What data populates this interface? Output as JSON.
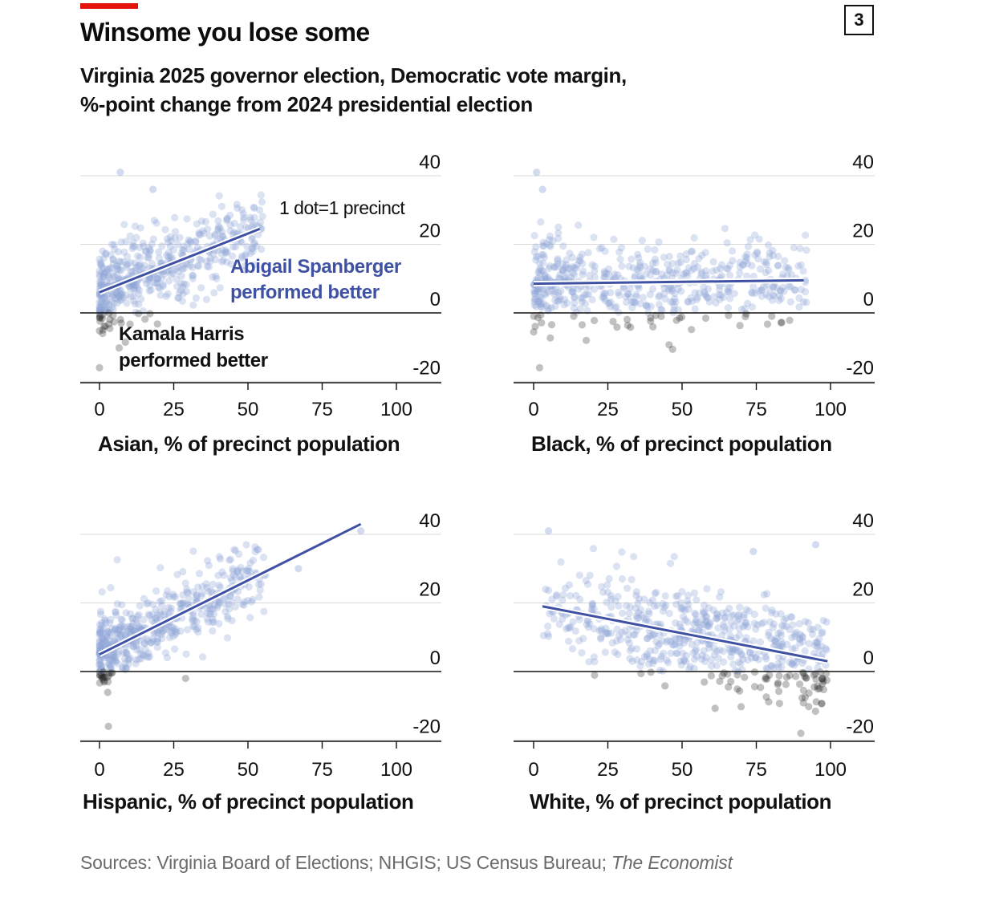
{
  "header": {
    "title": "Winsome you lose some",
    "subtitle_line1": "Virginia 2025 governor election, Democratic vote margin,",
    "subtitle_line2": "%-point change from 2024 presidential election",
    "badge": "3"
  },
  "footer": {
    "source_prefix": "Sources: Virginia Board of Elections; NHGIS; US Census Bureau; ",
    "source_italic": "The Economist"
  },
  "colors": {
    "blue_line": "#3f51a3",
    "blue_dots": "#8fa6d6",
    "dark_dots": "#222222",
    "grid": "#d9d9d9",
    "zero_line": "#111111",
    "red_accent": "#e3120b"
  },
  "annotations": {
    "dot_key": "1 dot=1 precinct",
    "spanberger_line1": "Abigail Spanberger",
    "spanberger_line2": "performed better",
    "harris_line1": "Kamala Harris",
    "harris_line2": "performed better"
  },
  "chart_data": [
    {
      "type": "scatter",
      "xlabel": "Asian, % of precinct population",
      "x_ticks": [
        "0",
        "25",
        "50",
        "75",
        "100"
      ],
      "y_ticks": [
        "40",
        "20",
        "0",
        "-20"
      ],
      "xlim": [
        0,
        100
      ],
      "ylim": [
        -20,
        40
      ],
      "grid": true,
      "y_axis_side": "right",
      "trend": {
        "x": [
          0,
          54
        ],
        "y": [
          6,
          24.5
        ]
      },
      "dots": {
        "x_max": 55,
        "x_skew": 1.6,
        "intercept": 6,
        "slope": 0.34,
        "spread": 6,
        "n": 520,
        "outliers": [
          [
            7,
            41
          ],
          [
            18,
            36
          ],
          [
            0,
            -16
          ]
        ]
      }
    },
    {
      "type": "scatter",
      "xlabel": "Black, % of precinct population",
      "x_ticks": [
        "0",
        "25",
        "50",
        "75",
        "100"
      ],
      "y_ticks": [
        "40",
        "20",
        "0",
        "-20"
      ],
      "xlim": [
        0,
        100
      ],
      "ylim": [
        -20,
        40
      ],
      "grid": true,
      "y_axis_side": "right",
      "trend": {
        "x": [
          0,
          91
        ],
        "y": [
          8.5,
          9.5
        ]
      },
      "dots": {
        "x_max": 92,
        "x_skew": 1.4,
        "intercept": 8.5,
        "slope": 0.01,
        "spread": 6.5,
        "n": 560,
        "outliers": [
          [
            1,
            41
          ],
          [
            3,
            36
          ],
          [
            2,
            -16
          ]
        ]
      }
    },
    {
      "type": "scatter",
      "xlabel": "Hispanic, % of precinct population",
      "x_ticks": [
        "0",
        "25",
        "50",
        "75",
        "100"
      ],
      "y_ticks": [
        "40",
        "20",
        "0",
        "-20"
      ],
      "xlim": [
        0,
        100
      ],
      "ylim": [
        -20,
        40
      ],
      "grid": true,
      "y_axis_side": "right",
      "trend": {
        "x": [
          0,
          88
        ],
        "y": [
          5,
          43
        ]
      },
      "dots": {
        "x_max": 56,
        "x_skew": 1.7,
        "intercept": 5,
        "slope": 0.43,
        "spread": 5.5,
        "n": 520,
        "outliers": [
          [
            88,
            41
          ],
          [
            67,
            30
          ],
          [
            3,
            -16
          ],
          [
            29,
            -2
          ]
        ]
      }
    },
    {
      "type": "scatter",
      "xlabel": "White, % of precinct population",
      "x_ticks": [
        "0",
        "25",
        "50",
        "75",
        "100"
      ],
      "y_ticks": [
        "40",
        "20",
        "0",
        "-20"
      ],
      "xlim": [
        0,
        100
      ],
      "ylim": [
        -20,
        40
      ],
      "grid": true,
      "y_axis_side": "right",
      "trend": {
        "x": [
          3,
          99
        ],
        "y": [
          19,
          3
        ]
      },
      "dots": {
        "x_min": 3,
        "x_max": 99,
        "x_skew": 0.75,
        "intercept": 19.5,
        "slope": -0.17,
        "spread": 6.5,
        "n": 600,
        "outliers": [
          [
            5,
            41
          ],
          [
            95,
            37
          ],
          [
            74,
            35
          ],
          [
            90,
            -18
          ]
        ]
      }
    }
  ]
}
